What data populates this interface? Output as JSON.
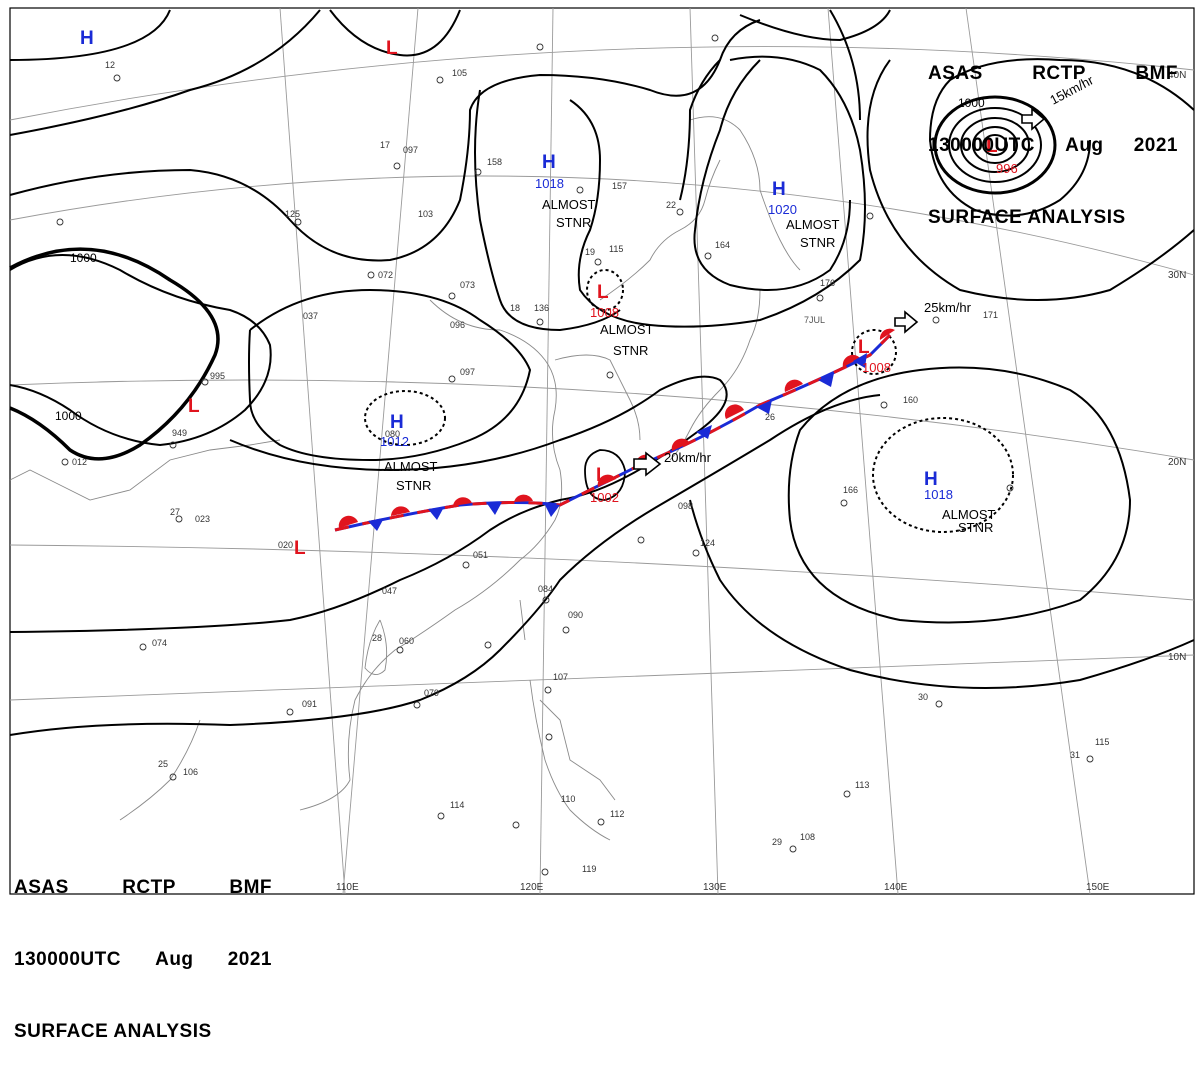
{
  "header": {
    "line1": [
      "ASAS",
      "RCTP",
      "BMF"
    ],
    "line2": [
      "130000UTC",
      "Aug",
      "2021"
    ],
    "line3": "SURFACE ANALYSIS"
  },
  "footer": {
    "line1": [
      "ASAS",
      "RCTP",
      "BMF"
    ],
    "line2": [
      "130000UTC",
      "Aug",
      "2021"
    ],
    "line3": "SURFACE ANALYSIS"
  },
  "lat_labels": [
    "40N",
    "30N",
    "20N",
    "10N"
  ],
  "lon_labels": [
    "110E",
    "120E",
    "130E",
    "140E",
    "150E"
  ],
  "pressure_centers": [
    {
      "type": "H",
      "value": ""
    },
    {
      "type": "L",
      "value": ""
    },
    {
      "type": "H",
      "value": "1018",
      "note1": "ALMOST",
      "note2": "STNR"
    },
    {
      "type": "H",
      "value": "1020",
      "note1": "ALMOST",
      "note2": "STNR"
    },
    {
      "type": "L",
      "value": "996"
    },
    {
      "type": "L",
      "value": "1008",
      "note1": "ALMOST",
      "note2": "STNR"
    },
    {
      "type": "L",
      "value": ""
    },
    {
      "type": "H",
      "value": "1012",
      "note1": "ALMOST",
      "note2": "STNR"
    },
    {
      "type": "L",
      "value": "1008"
    },
    {
      "type": "L",
      "value": "1002"
    },
    {
      "type": "H",
      "value": "1018",
      "note1": "ALMOST",
      "note2": "STNR"
    },
    {
      "type": "L",
      "value": ""
    }
  ],
  "isobar_labels": [
    "1000",
    "1000",
    "1000"
  ],
  "motion_labels": [
    "15km/hr",
    "25km/hr",
    "20km/hr"
  ],
  "front_date_label": "7JUL",
  "colors": {
    "high": "#1a2bd6",
    "low": "#e0141e",
    "front_warm": "#e0141e",
    "front_cold": "#1a2bd6",
    "isobar": "#000000",
    "coast": "#8a8a8a",
    "grid": "#9a9a9a"
  },
  "station_samples": [
    "12",
    "105",
    "17",
    "097",
    "18",
    "158",
    "136",
    "115",
    "19",
    "157",
    "995",
    "949",
    "096",
    "023",
    "037",
    "072",
    "073",
    "097",
    "080",
    "098",
    "124",
    "051",
    "084",
    "090",
    "107",
    "119",
    "114",
    "110",
    "112",
    "106",
    "091",
    "079",
    "060",
    "047",
    "103",
    "164",
    "176",
    "171",
    "160",
    "166",
    "113",
    "108",
    "115",
    "125",
    "012",
    "074",
    "020",
    "22",
    "27",
    "30",
    "26",
    "25",
    "28",
    "29",
    "31"
  ]
}
